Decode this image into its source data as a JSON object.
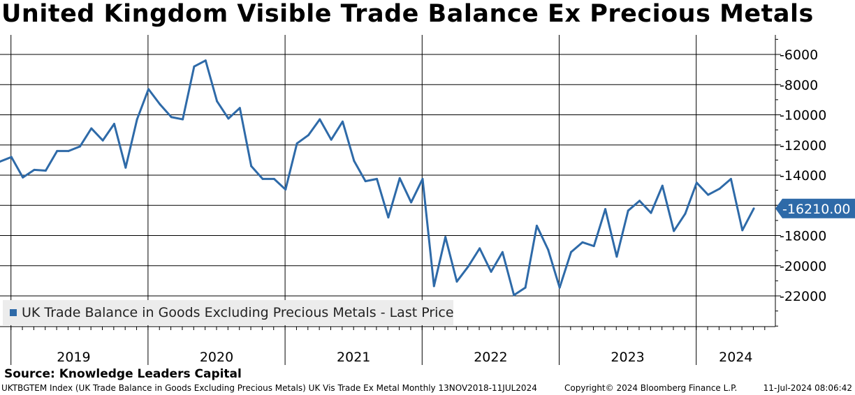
{
  "title": "United Kingdom Visible Trade Balance Ex Precious Metals",
  "source": "Source: Knowledge Leaders Capital",
  "footer": {
    "left": "UKTBGTEM Index (UK Trade Balance in Goods Excluding Precious Metals) UK Vis Trade Ex Metal  Monthly 13NOV2018-11JUL2024",
    "middle": "Copyright© 2024 Bloomberg Finance L.P.",
    "right": "11-Jul-2024 08:06:42"
  },
  "legend": {
    "label": "UK Trade Balance in Goods Excluding Precious Metals - Last Price"
  },
  "colors": {
    "series": "#2e6aa8",
    "grid": "#000000",
    "background": "#ffffff",
    "legend_bg": "#ececec"
  },
  "chart_data": {
    "type": "line",
    "title": "United Kingdom Visible Trade Balance Ex Precious Metals",
    "xlabel": "",
    "ylabel": "",
    "ylim": [
      -24000,
      -5000
    ],
    "y_axis_side": "right",
    "yticks": [
      -6000,
      -8000,
      -10000,
      -12000,
      -14000,
      -16000,
      -18000,
      -20000,
      -22000
    ],
    "ytick_labels": [
      "-6000",
      "-8000",
      "-10000",
      "-12000",
      "-14000",
      "-16000",
      "-18000",
      "-20000",
      "-22000"
    ],
    "year_labels": [
      "2019",
      "2020",
      "2021",
      "2022",
      "2023",
      "2024"
    ],
    "x_start": "2018-11",
    "last_price": -16210.0,
    "last_price_label": "-16210.00",
    "series": [
      {
        "name": "UK Trade Balance in Goods Excluding Precious Metals - Last Price",
        "x": [
          "2018-11",
          "2018-12",
          "2019-01",
          "2019-02",
          "2019-03",
          "2019-04",
          "2019-05",
          "2019-06",
          "2019-07",
          "2019-08",
          "2019-09",
          "2019-10",
          "2019-11",
          "2019-12",
          "2020-01",
          "2020-02",
          "2020-03",
          "2020-04",
          "2020-05",
          "2020-06",
          "2020-07",
          "2020-08",
          "2020-09",
          "2020-10",
          "2020-11",
          "2020-12",
          "2021-01",
          "2021-02",
          "2021-03",
          "2021-04",
          "2021-05",
          "2021-06",
          "2021-07",
          "2021-08",
          "2021-09",
          "2021-10",
          "2021-11",
          "2021-12",
          "2022-01",
          "2022-02",
          "2022-03",
          "2022-04",
          "2022-05",
          "2022-06",
          "2022-07",
          "2022-08",
          "2022-09",
          "2022-10",
          "2022-11",
          "2022-12",
          "2023-01",
          "2023-02",
          "2023-03",
          "2023-04",
          "2023-05",
          "2023-06",
          "2023-07",
          "2023-08",
          "2023-09",
          "2023-10",
          "2023-11",
          "2023-12",
          "2024-01",
          "2024-02",
          "2024-03",
          "2024-04",
          "2024-05"
        ],
        "values": [
          -13100,
          -12800,
          -14150,
          -13650,
          -13700,
          -12400,
          -12400,
          -12100,
          -10900,
          -11700,
          -10600,
          -13500,
          -10300,
          -8300,
          -9300,
          -10150,
          -10300,
          -6800,
          -6400,
          -9100,
          -10250,
          -9550,
          -13400,
          -14250,
          -14250,
          -14950,
          -11900,
          -11350,
          -10300,
          -11650,
          -10450,
          -13050,
          -14400,
          -14250,
          -16800,
          -14200,
          -15800,
          -14250,
          -21350,
          -18100,
          -21050,
          -20050,
          -18850,
          -20400,
          -19100,
          -21950,
          -21450,
          -17350,
          -18950,
          -21450,
          -19100,
          -18450,
          -18700,
          -16250,
          -19400,
          -16350,
          -15700,
          -16500,
          -14700,
          -17700,
          -16550,
          -14500,
          -15300,
          -14900,
          -14250,
          -17650,
          -16210
        ]
      }
    ]
  }
}
